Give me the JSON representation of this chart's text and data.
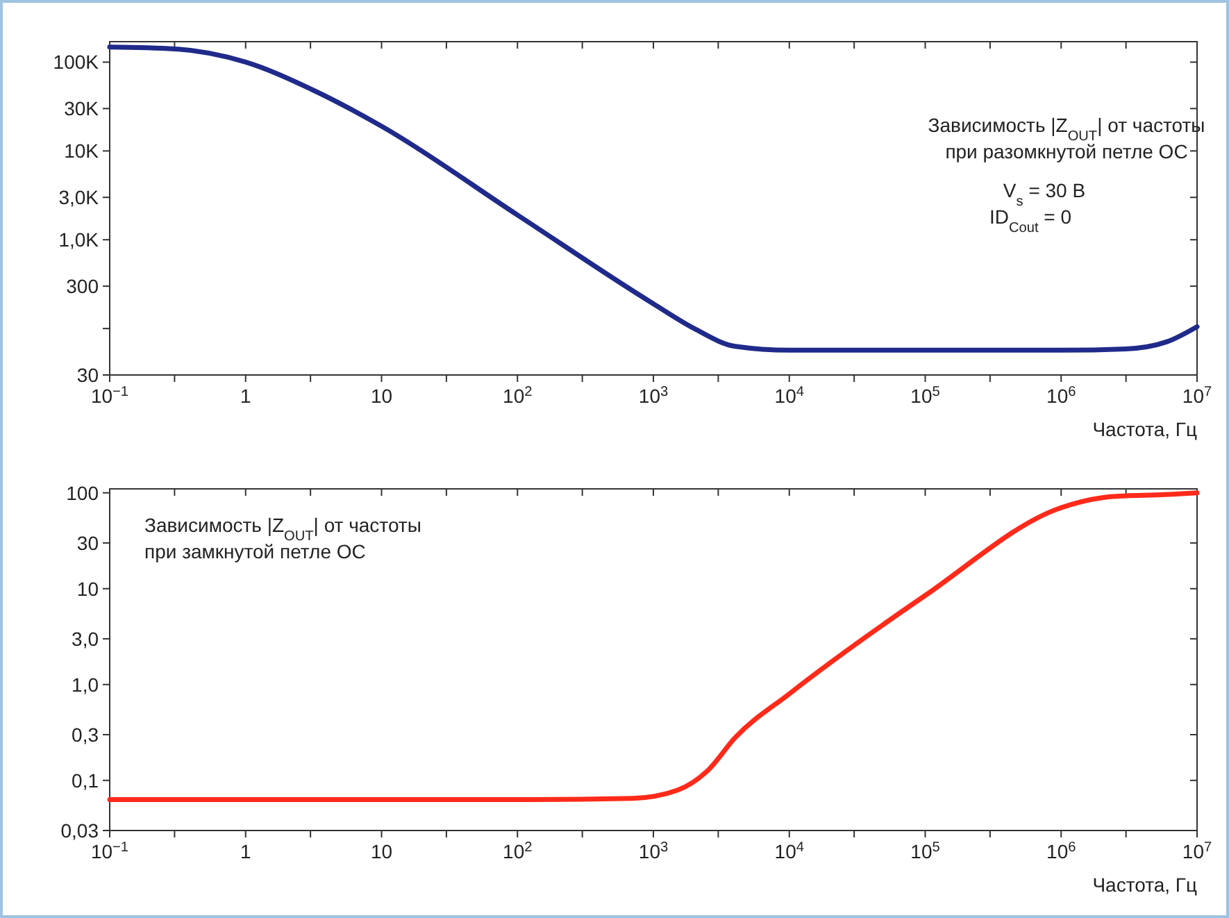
{
  "chart_data": [
    {
      "type": "line",
      "log": "xy",
      "xlabel": "Частота, Гц",
      "annotations": [
        "Зависимость |Z$_{OUT}$| от частоты",
        "при разомкнутой петле ОС",
        "V$_{s}$ = 30 В",
        "ID$_{Cout}$ = 0"
      ],
      "x": [
        0.1,
        0.3,
        1,
        3,
        10,
        100,
        1000,
        2000,
        4000,
        10000,
        100000,
        1000000,
        3000000,
        6000000,
        10000000
      ],
      "series": [
        {
          "color": "#1f2a8a",
          "values": [
            148000,
            141000,
            100000,
            50000,
            19000,
            1900,
            190,
            100,
            63,
            57,
            57,
            57,
            59,
            71,
            105
          ]
        }
      ],
      "xlim": [
        0.1,
        10000000
      ],
      "ylim": [
        30,
        170000
      ],
      "xticks": [
        {
          "value": 0.1,
          "label": "10$^{−1}$"
        },
        {
          "value": 0.3,
          "label": null
        },
        {
          "value": 1,
          "label": "1"
        },
        {
          "value": 3,
          "label": null
        },
        {
          "value": 10,
          "label": "10"
        },
        {
          "value": 30,
          "label": null
        },
        {
          "value": 100,
          "label": "10$^{2}$"
        },
        {
          "value": 300,
          "label": null
        },
        {
          "value": 1000,
          "label": "10$^{3}$"
        },
        {
          "value": 3000,
          "label": null
        },
        {
          "value": 10000,
          "label": "10$^{4}$"
        },
        {
          "value": 30000,
          "label": null
        },
        {
          "value": 100000,
          "label": "10$^{5}$"
        },
        {
          "value": 300000,
          "label": null
        },
        {
          "value": 1000000,
          "label": "10$^{6}$"
        },
        {
          "value": 3000000,
          "label": null
        },
        {
          "value": 10000000,
          "label": "10$^{7}$"
        }
      ],
      "yticks": [
        {
          "value": 30,
          "label": "30"
        },
        {
          "value": 100,
          "label": null
        },
        {
          "value": 300,
          "label": "300"
        },
        {
          "value": 1000,
          "label": "1,0K"
        },
        {
          "value": 3000,
          "label": "3,0K"
        },
        {
          "value": 10000,
          "label": "10K"
        },
        {
          "value": 30000,
          "label": "30K"
        },
        {
          "value": 100000,
          "label": "100K"
        }
      ],
      "grid": false,
      "line_style": "solid",
      "marker": "none"
    },
    {
      "type": "line",
      "log": "xy",
      "xlabel": "Частота, Гц",
      "annotations": [
        "Зависимость |Z$_{OUT}$| от частоты",
        "при замкнутой петле ОС"
      ],
      "x": [
        0.1,
        100,
        700,
        1500,
        2500,
        4000,
        10000,
        100000,
        1000000,
        2000000,
        3000000,
        5000000,
        10000000
      ],
      "series": [
        {
          "color": "#ff2a1a",
          "values": [
            0.063,
            0.063,
            0.065,
            0.079,
            0.126,
            0.28,
            0.8,
            8.5,
            70,
            89,
            93,
            95,
            100
          ]
        }
      ],
      "xlim": [
        0.1,
        10000000
      ],
      "ylim": [
        0.03,
        110
      ],
      "xticks": [
        {
          "value": 0.1,
          "label": "10$^{−1}$"
        },
        {
          "value": 0.3,
          "label": null
        },
        {
          "value": 1,
          "label": "1"
        },
        {
          "value": 3,
          "label": null
        },
        {
          "value": 10,
          "label": "10"
        },
        {
          "value": 30,
          "label": null
        },
        {
          "value": 100,
          "label": "10$^{2}$"
        },
        {
          "value": 300,
          "label": null
        },
        {
          "value": 1000,
          "label": "10$^{3}$"
        },
        {
          "value": 3000,
          "label": null
        },
        {
          "value": 10000,
          "label": "10$^{4}$"
        },
        {
          "value": 30000,
          "label": null
        },
        {
          "value": 100000,
          "label": "10$^{5}$"
        },
        {
          "value": 300000,
          "label": null
        },
        {
          "value": 1000000,
          "label": "10$^{6}$"
        },
        {
          "value": 3000000,
          "label": null
        },
        {
          "value": 10000000,
          "label": "10$^{7}$"
        }
      ],
      "yticks": [
        {
          "value": 0.03,
          "label": "0,03"
        },
        {
          "value": 0.1,
          "label": "0,1"
        },
        {
          "value": 0.3,
          "label": "0,3"
        },
        {
          "value": 1,
          "label": "1,0"
        },
        {
          "value": 3,
          "label": "3,0"
        },
        {
          "value": 10,
          "label": "10"
        },
        {
          "value": 30,
          "label": "30"
        },
        {
          "value": 100,
          "label": "100"
        }
      ],
      "grid": false,
      "line_style": "solid",
      "marker": "none"
    }
  ]
}
